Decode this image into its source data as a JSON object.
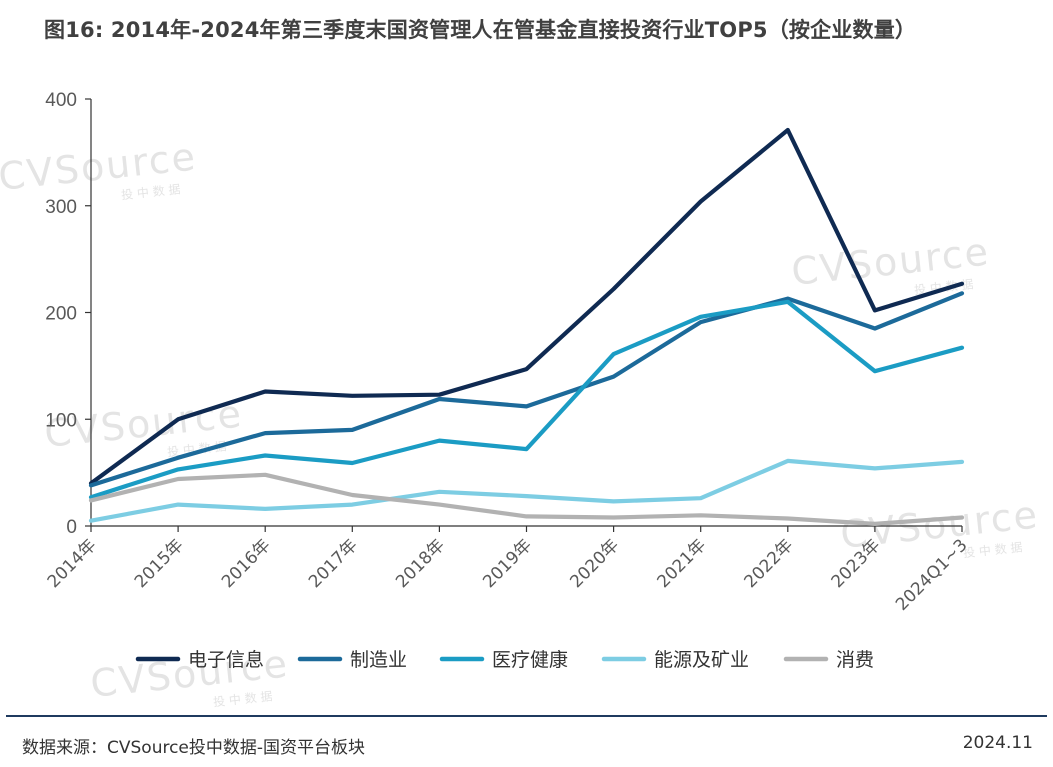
{
  "title": "图16: 2014年-2024年第三季度末国资管理人在管基金直接投资行业TOP5（按企业数量）",
  "source": "数据来源：CVSource投中数据-国资平台板块",
  "date": "2024.11",
  "watermark": {
    "brand": "CVSource",
    "sub": "投 中 数 据"
  },
  "colors": {
    "axis": "#333333",
    "tick_text": "#595959",
    "watermark": "#e4e4e4"
  },
  "chart_data": {
    "type": "line",
    "title": "图16: 2014年-2024年第三季度末国资管理人在管基金直接投资行业TOP5（按企业数量）",
    "xlabel": "",
    "ylabel": "",
    "ylim": [
      0,
      400
    ],
    "yticks": [
      0,
      100,
      200,
      300,
      400
    ],
    "grid": false,
    "legend_position": "bottom",
    "categories": [
      "2014年",
      "2015年",
      "2016年",
      "2017年",
      "2018年",
      "2019年",
      "2020年",
      "2021年",
      "2022年",
      "2023年",
      "2024Q1~3"
    ],
    "series": [
      {
        "name": "电子信息",
        "color": "#0f2a52",
        "values": [
          40,
          100,
          126,
          122,
          123,
          147,
          222,
          304,
          371,
          202,
          227
        ]
      },
      {
        "name": "制造业",
        "color": "#1c6a9a",
        "values": [
          38,
          64,
          87,
          90,
          119,
          112,
          140,
          191,
          213,
          185,
          218
        ]
      },
      {
        "name": "医疗健康",
        "color": "#1b9cc4",
        "values": [
          27,
          53,
          66,
          59,
          80,
          72,
          161,
          196,
          210,
          145,
          167
        ]
      },
      {
        "name": "能源及矿业",
        "color": "#7dcde3",
        "values": [
          5,
          20,
          16,
          20,
          32,
          28,
          23,
          26,
          61,
          54,
          60
        ]
      },
      {
        "name": "消费",
        "color": "#b2b2b2",
        "values": [
          24,
          44,
          48,
          29,
          20,
          9,
          8,
          10,
          7,
          2,
          8
        ]
      }
    ]
  }
}
